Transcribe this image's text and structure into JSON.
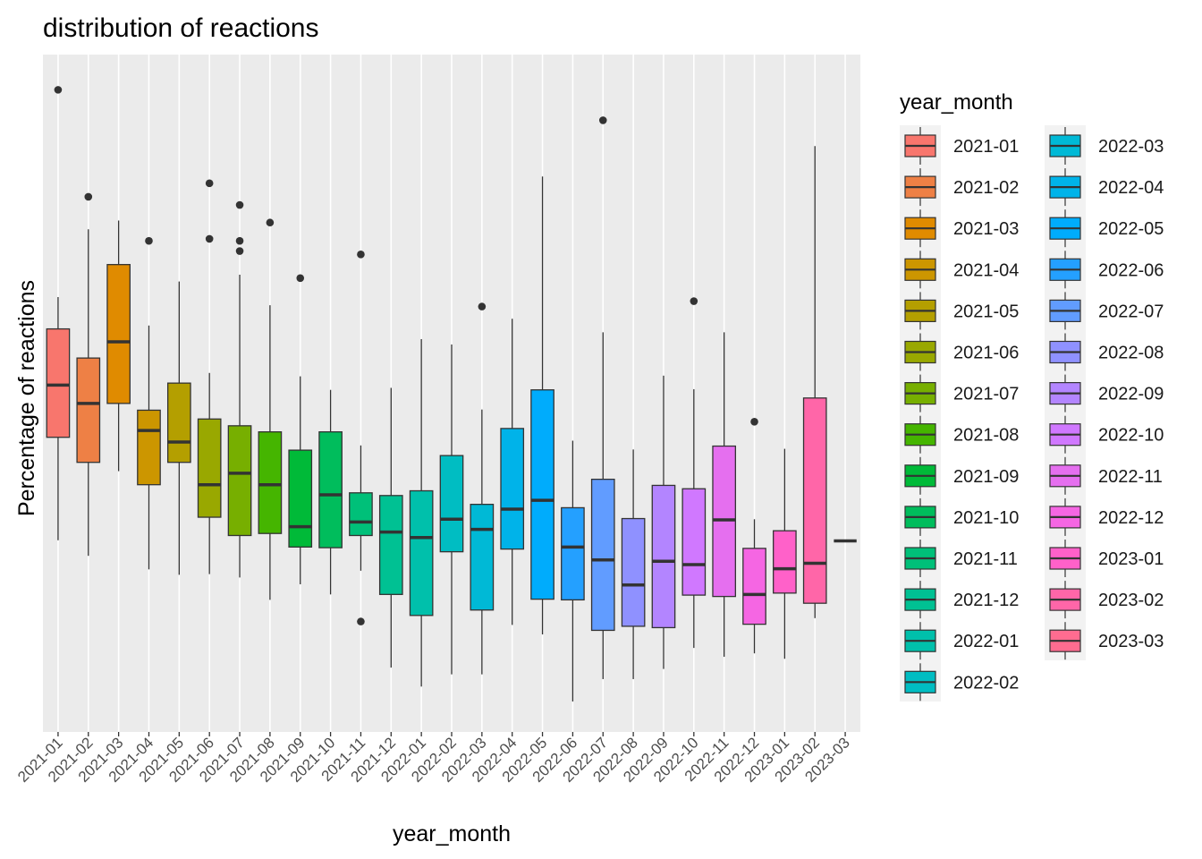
{
  "chart_data": {
    "type": "boxplot",
    "title": "distribution of reactions",
    "xlabel": "year_month",
    "ylabel": "Percentage of reactions",
    "y_ticks_shown": false,
    "y_range": [
      0,
      100
    ],
    "grid": true,
    "legend": {
      "title": "year_month",
      "position": "right",
      "columns": 2
    },
    "categories": [
      "2021-01",
      "2021-02",
      "2021-03",
      "2021-04",
      "2021-05",
      "2021-06",
      "2021-07",
      "2021-08",
      "2021-09",
      "2021-10",
      "2021-11",
      "2021-12",
      "2022-01",
      "2022-02",
      "2022-03",
      "2022-04",
      "2022-05",
      "2022-06",
      "2022-07",
      "2022-08",
      "2022-09",
      "2022-10",
      "2022-11",
      "2022-12",
      "2023-01",
      "2023-02",
      "2023-03"
    ],
    "colors": [
      "#F8766D",
      "#EE8045",
      "#E08B00",
      "#CC9600",
      "#B49F00",
      "#99A800",
      "#77AF00",
      "#45B500",
      "#00BA38",
      "#00BD5C",
      "#00C079",
      "#00C193",
      "#00C0AB",
      "#00BDC2",
      "#00B9D6",
      "#00B3E9",
      "#00ACFC",
      "#24A0FF",
      "#619CFF",
      "#8F91FF",
      "#B385FF",
      "#D078FF",
      "#E56FEF",
      "#F566E3",
      "#FF61C9",
      "#FF66A8",
      "#FF6C90"
    ],
    "boxes": [
      {
        "lo": 28.3,
        "q1": 43.5,
        "med": 51.2,
        "q3": 59.5,
        "hi": 64.2,
        "out": [
          94.8
        ]
      },
      {
        "lo": 26.0,
        "q1": 39.8,
        "med": 48.5,
        "q3": 55.2,
        "hi": 74.2,
        "out": [
          79.0
        ]
      },
      {
        "lo": 38.5,
        "q1": 48.5,
        "med": 57.6,
        "q3": 69.0,
        "hi": 75.5,
        "out": []
      },
      {
        "lo": 24.0,
        "q1": 36.5,
        "med": 44.5,
        "q3": 47.5,
        "hi": 60.0,
        "out": [
          72.5
        ]
      },
      {
        "lo": 23.2,
        "q1": 39.8,
        "med": 42.8,
        "q3": 51.5,
        "hi": 66.5,
        "out": []
      },
      {
        "lo": 23.3,
        "q1": 31.7,
        "med": 36.5,
        "q3": 46.2,
        "hi": 53.0,
        "out": [
          81.0,
          72.8
        ]
      },
      {
        "lo": 22.8,
        "q1": 29.0,
        "med": 38.2,
        "q3": 45.2,
        "hi": 67.5,
        "out": [
          77.8,
          72.5,
          71.0
        ]
      },
      {
        "lo": 19.5,
        "q1": 29.3,
        "med": 36.5,
        "q3": 44.3,
        "hi": 63.0,
        "out": [
          75.2
        ]
      },
      {
        "lo": 21.8,
        "q1": 27.3,
        "med": 30.3,
        "q3": 41.6,
        "hi": 52.5,
        "out": [
          67.0
        ]
      },
      {
        "lo": 20.3,
        "q1": 27.2,
        "med": 35.0,
        "q3": 44.3,
        "hi": 50.5,
        "out": []
      },
      {
        "lo": 23.8,
        "q1": 29.0,
        "med": 31.0,
        "q3": 35.3,
        "hi": 42.3,
        "out": [
          16.3,
          70.5
        ]
      },
      {
        "lo": 9.5,
        "q1": 20.3,
        "med": 29.5,
        "q3": 34.9,
        "hi": 50.8,
        "out": []
      },
      {
        "lo": 6.7,
        "q1": 17.2,
        "med": 28.7,
        "q3": 35.6,
        "hi": 58.0,
        "out": []
      },
      {
        "lo": 8.5,
        "q1": 26.6,
        "med": 31.4,
        "q3": 40.8,
        "hi": 57.2,
        "out": []
      },
      {
        "lo": 8.5,
        "q1": 18.0,
        "med": 29.9,
        "q3": 33.6,
        "hi": 47.6,
        "out": [
          62.8
        ]
      },
      {
        "lo": 15.8,
        "q1": 27.0,
        "med": 32.9,
        "q3": 44.8,
        "hi": 61.0,
        "out": []
      },
      {
        "lo": 14.4,
        "q1": 19.6,
        "med": 34.2,
        "q3": 50.5,
        "hi": 82.0,
        "out": []
      },
      {
        "lo": 4.5,
        "q1": 19.5,
        "med": 27.3,
        "q3": 33.1,
        "hi": 43.0,
        "out": []
      },
      {
        "lo": 7.8,
        "q1": 15.0,
        "med": 25.4,
        "q3": 37.3,
        "hi": 59.0,
        "out": [
          90.3
        ]
      },
      {
        "lo": 7.8,
        "q1": 15.6,
        "med": 21.7,
        "q3": 31.5,
        "hi": 41.7,
        "out": []
      },
      {
        "lo": 9.3,
        "q1": 15.4,
        "med": 25.2,
        "q3": 36.4,
        "hi": 52.6,
        "out": []
      },
      {
        "lo": 12.4,
        "q1": 20.2,
        "med": 24.7,
        "q3": 35.9,
        "hi": 50.6,
        "out": [
          63.6
        ]
      },
      {
        "lo": 11.1,
        "q1": 20.0,
        "med": 31.3,
        "q3": 42.2,
        "hi": 59.0,
        "out": []
      },
      {
        "lo": 11.6,
        "q1": 15.9,
        "med": 20.3,
        "q3": 27.1,
        "hi": 31.4,
        "out": [
          45.8
        ]
      },
      {
        "lo": 10.8,
        "q1": 20.5,
        "med": 24.1,
        "q3": 29.7,
        "hi": 41.8,
        "out": []
      },
      {
        "lo": 16.8,
        "q1": 19.0,
        "med": 24.9,
        "q3": 49.3,
        "hi": 86.5,
        "out": []
      },
      {
        "lo": 28.2,
        "q1": 28.2,
        "med": 28.2,
        "q3": 28.2,
        "hi": 28.2,
        "out": []
      }
    ]
  }
}
